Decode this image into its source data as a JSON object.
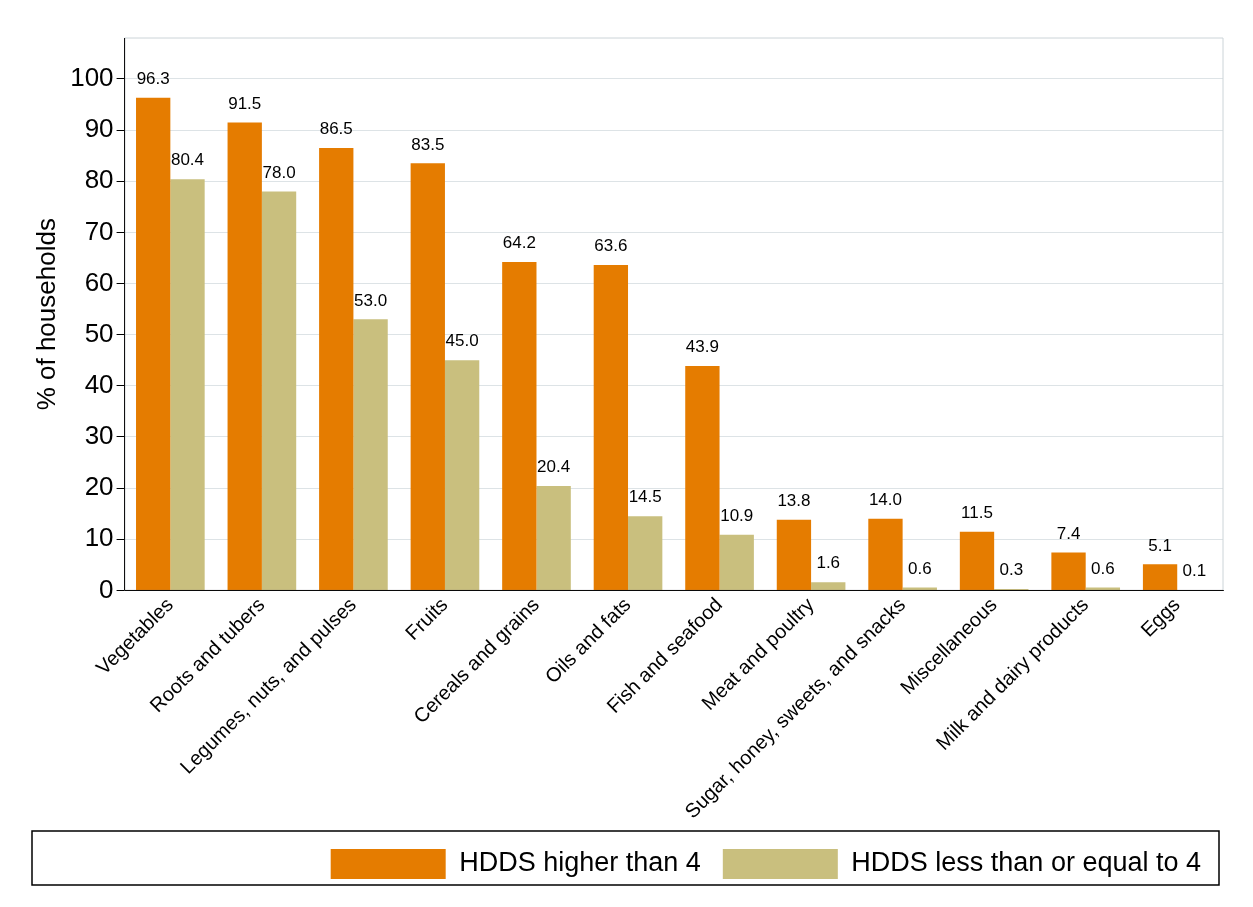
{
  "chart_data": {
    "type": "bar",
    "ylabel": "% of households",
    "categories": [
      "Vegetables",
      "Roots and tubers",
      "Legumes, nuts, and pulses",
      "Fruits",
      "Cereals and grains",
      "Oils and fats",
      "Fish and seafood",
      "Meat and poultry",
      "Sugar, honey, sweets, and snacks",
      "Miscellaneous",
      "Milk and dairy products",
      "Eggs"
    ],
    "series": [
      {
        "name": "HDDS higher than 4",
        "color": "#e57c00",
        "values": [
          96.3,
          91.5,
          86.5,
          83.5,
          64.2,
          63.6,
          43.9,
          13.8,
          14.0,
          11.5,
          7.4,
          5.1
        ],
        "value_labels": [
          "96.3",
          "91.5",
          "86.5",
          "83.5",
          "64.2",
          "63.6",
          "43.9",
          "13.8",
          "14.0",
          "11.5",
          "7.4",
          "5.1"
        ]
      },
      {
        "name": "HDDS less than or equal to 4",
        "color": "#c9bf7e",
        "values": [
          80.4,
          78.0,
          53.0,
          45.0,
          20.4,
          14.5,
          10.9,
          1.6,
          0.6,
          0.3,
          0.6,
          0.1
        ],
        "value_labels": [
          "80.4",
          "78.0",
          "53.0",
          "45.0",
          "20.4",
          "14.5",
          "10.9",
          "1.6",
          "0.6",
          "0.3",
          "0.6",
          "0.1"
        ]
      }
    ],
    "ylim": [
      0,
      108
    ],
    "yticks": [
      0,
      10,
      20,
      30,
      40,
      50,
      60,
      70,
      80,
      90,
      100
    ],
    "grid": "y",
    "legend": "bottom"
  }
}
